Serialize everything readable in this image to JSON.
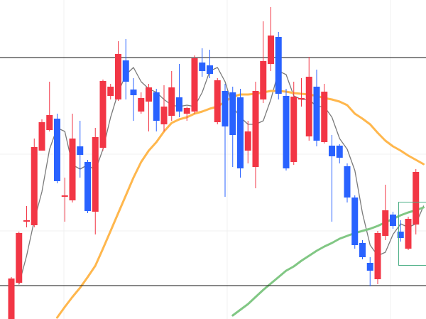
{
  "chart_data": {
    "type": "candlestick",
    "ylim": [
      0,
      449
    ],
    "up_color": "#f23645",
    "down_color": "#2962ff",
    "open": [
      0,
      51,
      137,
      132,
      237,
      266,
      282,
      172,
      167,
      243,
      221,
      151,
      241,
      314,
      309,
      364,
      323,
      292,
      306,
      319,
      274,
      286,
      312,
      289,
      292,
      361,
      357,
      277,
      321,
      319,
      312,
      237,
      214,
      309,
      359,
      397,
      314,
      221,
      309,
      257,
      327,
      249,
      244,
      244,
      215,
      171,
      107,
      79,
      56,
      117,
      147,
      123,
      99,
      133
    ],
    "high": [
      59,
      123,
      159,
      254,
      281,
      334,
      289,
      199,
      289,
      279,
      224,
      269,
      337,
      331,
      391,
      394,
      339,
      319,
      331,
      324,
      329,
      349,
      359,
      299,
      371,
      381,
      379,
      339,
      331,
      327,
      324,
      279,
      334,
      419,
      439,
      404,
      324,
      334,
      339,
      369,
      351,
      331,
      259,
      246,
      219,
      174,
      111,
      87,
      124,
      189,
      151,
      139,
      144,
      211
    ],
    "low": [
      0,
      49,
      129,
      129,
      237,
      264,
      191,
      137,
      164,
      199,
      149,
      119,
      237,
      309,
      307,
      309,
      279,
      289,
      264,
      264,
      264,
      279,
      284,
      279,
      289,
      341,
      339,
      274,
      172,
      214,
      199,
      219,
      184,
      304,
      349,
      309,
      209,
      217,
      299,
      251,
      243,
      247,
      137,
      219,
      164,
      99,
      84,
      46,
      49,
      111,
      127,
      109,
      97,
      119
    ],
    "close": [
      57,
      121,
      139,
      242,
      277,
      287,
      194,
      174,
      254,
      231,
      152,
      256,
      335,
      327,
      373,
      334,
      315,
      311,
      326,
      279,
      299,
      326,
      292,
      297,
      367,
      349,
      345,
      336,
      271,
      259,
      212,
      264,
      321,
      363,
      399,
      317,
      212,
      313,
      311,
      341,
      251,
      320,
      229,
      227,
      171,
      104,
      87,
      68,
      121,
      153,
      131,
      114,
      141,
      207
    ],
    "lines": [
      {
        "color": "#7a7a7a",
        "values": [
          null,
          49,
          89,
          139,
          179,
          239,
          269,
          264,
          217,
          211,
          217,
          209,
          239,
          284,
          319,
          344,
          354,
          334,
          324,
          319,
          309,
          301,
          299,
          301,
          299,
          319,
          349,
          354,
          334,
          299,
          284,
          274,
          274,
          279,
          309,
          349,
          344,
          314,
          309,
          309,
          299,
          299,
          284,
          254,
          239,
          209,
          149,
          104,
          89,
          94,
          119,
          134,
          129,
          134,
          159
        ]
      },
      {
        "color": "#ffb74d",
        "values": [
          null,
          null,
          null,
          null,
          null,
          null,
          2,
          17,
          31,
          44,
          59,
          75,
          99,
          124,
          149,
          174,
          199,
          221,
          237,
          249,
          264,
          276,
          281,
          284,
          289,
          292,
          296,
          299,
          306,
          313,
          316,
          316,
          317,
          319,
          321,
          321,
          320,
          318,
          317,
          316,
          314,
          311,
          309,
          306,
          301,
          289,
          282,
          274,
          262,
          251,
          243,
          237,
          230,
          224,
          218
        ]
      },
      {
        "color": "#81c784",
        "values": [
          null,
          null,
          null,
          null,
          null,
          null,
          null,
          null,
          null,
          null,
          null,
          null,
          null,
          null,
          null,
          null,
          null,
          null,
          null,
          null,
          null,
          null,
          null,
          null,
          null,
          null,
          null,
          null,
          null,
          5,
          13,
          21,
          31,
          41,
          50,
          59,
          68,
          74,
          82,
          89,
          96,
          102,
          107,
          113,
          117,
          121,
          124,
          127,
          131,
          136,
          141,
          146,
          150,
          153,
          157
        ]
      }
    ],
    "hlines": [
      368,
      47
    ]
  }
}
